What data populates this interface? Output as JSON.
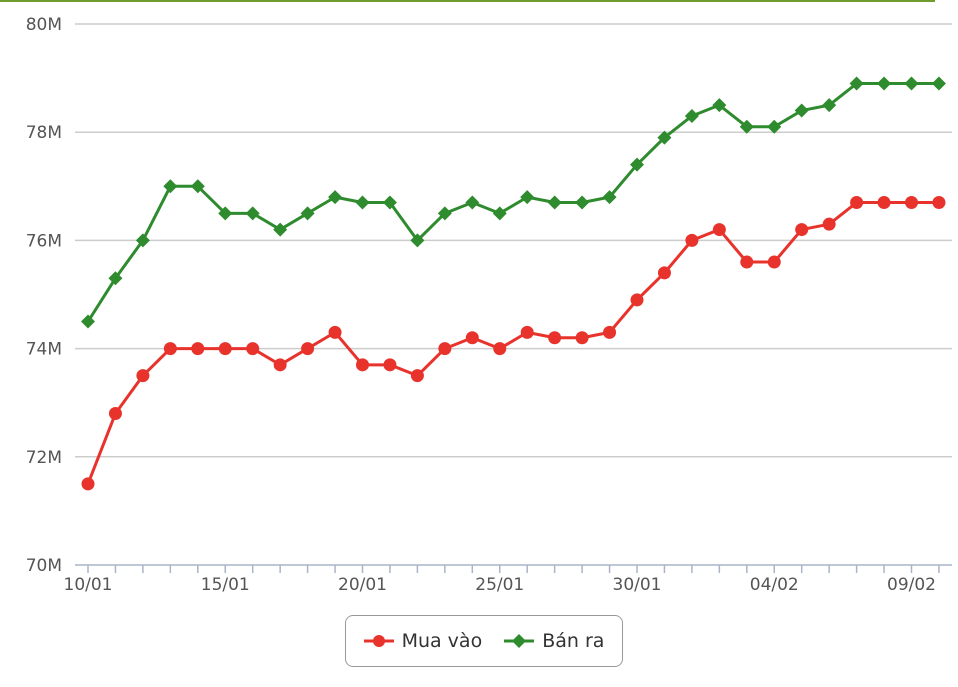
{
  "chart_data": {
    "type": "line",
    "categories": [
      "10/01",
      "11/01",
      "12/01",
      "13/01",
      "14/01",
      "15/01",
      "16/01",
      "17/01",
      "18/01",
      "19/01",
      "20/01",
      "21/01",
      "22/01",
      "23/01",
      "24/01",
      "25/01",
      "26/01",
      "27/01",
      "28/01",
      "29/01",
      "30/01",
      "31/01",
      "01/02",
      "02/02",
      "03/02",
      "04/02",
      "05/02",
      "06/02",
      "07/02",
      "08/02",
      "09/02",
      "10/02"
    ],
    "x_tick_labels": [
      "10/01",
      "15/01",
      "20/01",
      "25/01",
      "30/01",
      "04/02",
      "09/02"
    ],
    "y_tick_labels": [
      "70M",
      "72M",
      "74M",
      "76M",
      "78M",
      "80M"
    ],
    "ylim": [
      70,
      80
    ],
    "y_ticks": [
      70,
      72,
      74,
      76,
      78,
      80
    ],
    "y_unit": "M",
    "grid": true,
    "legend_position": "bottom-center",
    "series": [
      {
        "name": "Mua vào",
        "color": "#e8332c",
        "marker": "circle",
        "values": [
          71.5,
          72.8,
          73.5,
          74.0,
          74.0,
          74.0,
          74.0,
          73.7,
          74.0,
          74.3,
          73.7,
          73.7,
          73.5,
          74.0,
          74.2,
          74.0,
          74.3,
          74.2,
          74.2,
          74.3,
          74.9,
          75.4,
          76.0,
          76.2,
          75.6,
          75.6,
          76.2,
          76.3,
          76.7,
          76.7,
          76.7,
          76.7
        ]
      },
      {
        "name": "Bán ra",
        "color": "#2e8b2e",
        "marker": "diamond",
        "values": [
          74.5,
          75.3,
          76.0,
          77.0,
          77.0,
          76.5,
          76.5,
          76.2,
          76.5,
          76.8,
          76.7,
          76.7,
          76.0,
          76.5,
          76.7,
          76.5,
          76.8,
          76.7,
          76.7,
          76.8,
          77.4,
          77.9,
          78.3,
          78.5,
          78.1,
          78.1,
          78.4,
          78.5,
          78.9,
          78.9,
          78.9,
          78.9
        ]
      }
    ]
  },
  "colors": {
    "top_border": "#6f9b2f",
    "grid": "#cccccc",
    "axis": "#aab4c8"
  }
}
